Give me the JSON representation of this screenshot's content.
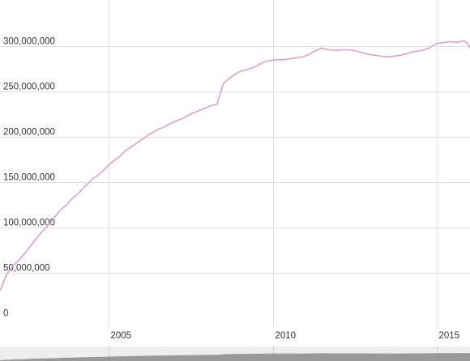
{
  "chart_data": {
    "type": "line",
    "xlim": [
      2001.7,
      2016.0
    ],
    "ylim": [
      0,
      310000000
    ],
    "grid": true,
    "xticks": [
      {
        "value": 2005,
        "label": "2005"
      },
      {
        "value": 2010,
        "label": "2010"
      },
      {
        "value": 2015,
        "label": "2015"
      }
    ],
    "yticks": [
      {
        "value": 0,
        "label": "0"
      },
      {
        "value": 50000000,
        "label": "50,000,000"
      },
      {
        "value": 100000000,
        "label": "100,000,000"
      },
      {
        "value": 150000000,
        "label": "150,000,000"
      },
      {
        "value": 200000000,
        "label": "200,000,000"
      },
      {
        "value": 250000000,
        "label": "250,000,000"
      },
      {
        "value": 300000000,
        "label": "300,000,000"
      }
    ],
    "colors": {
      "series": "#d9a3cf",
      "grid": "#e2e2e2",
      "navigator": "#8a8a8a"
    },
    "series": [
      {
        "x": [
          2001.7,
          2001.9,
          2002.1,
          2002.3,
          2002.5,
          2002.7,
          2002.9,
          2003.1,
          2003.3,
          2003.5,
          2003.7,
          2003.9,
          2004.1,
          2004.3,
          2004.5,
          2004.7,
          2004.9,
          2005.1,
          2005.3,
          2005.5,
          2005.7,
          2005.9,
          2006.1,
          2006.3,
          2006.5,
          2006.7,
          2006.9,
          2007.1,
          2007.3,
          2007.5,
          2007.7,
          2007.9,
          2008.1,
          2008.3,
          2008.5,
          2008.7,
          2008.9,
          2009.0,
          2009.1,
          2009.3,
          2009.5,
          2009.7,
          2009.9,
          2010.1,
          2010.3,
          2010.5,
          2010.7,
          2010.9,
          2011.1,
          2011.3,
          2011.5,
          2011.7,
          2011.9,
          2012.1,
          2012.3,
          2012.5,
          2012.7,
          2012.9,
          2013.1,
          2013.3,
          2013.5,
          2013.7,
          2013.9,
          2014.1,
          2014.3,
          2014.5,
          2014.7,
          2014.9,
          2015.0,
          2015.2,
          2015.4,
          2015.6,
          2015.8,
          2015.9,
          2016.0
        ],
        "y": [
          30000000,
          48000000,
          58000000,
          65000000,
          73000000,
          83000000,
          92000000,
          100000000,
          108000000,
          118000000,
          124000000,
          132000000,
          138000000,
          146000000,
          153000000,
          158000000,
          165000000,
          172000000,
          177000000,
          184000000,
          189000000,
          194000000,
          199000000,
          204000000,
          208000000,
          211000000,
          215000000,
          218000000,
          221000000,
          225000000,
          228000000,
          231000000,
          234000000,
          236000000,
          259000000,
          265000000,
          270000000,
          272000000,
          273000000,
          275000000,
          278000000,
          282000000,
          284000000,
          285000000,
          285000000,
          286000000,
          287000000,
          288000000,
          291000000,
          295000000,
          298000000,
          296000000,
          295000000,
          296000000,
          296000000,
          295000000,
          293000000,
          291000000,
          290000000,
          289000000,
          288000000,
          289000000,
          290000000,
          292000000,
          294000000,
          295000000,
          297000000,
          301000000,
          303000000,
          304000000,
          305000000,
          304000000,
          306000000,
          304000000,
          298000000
        ]
      }
    ]
  }
}
